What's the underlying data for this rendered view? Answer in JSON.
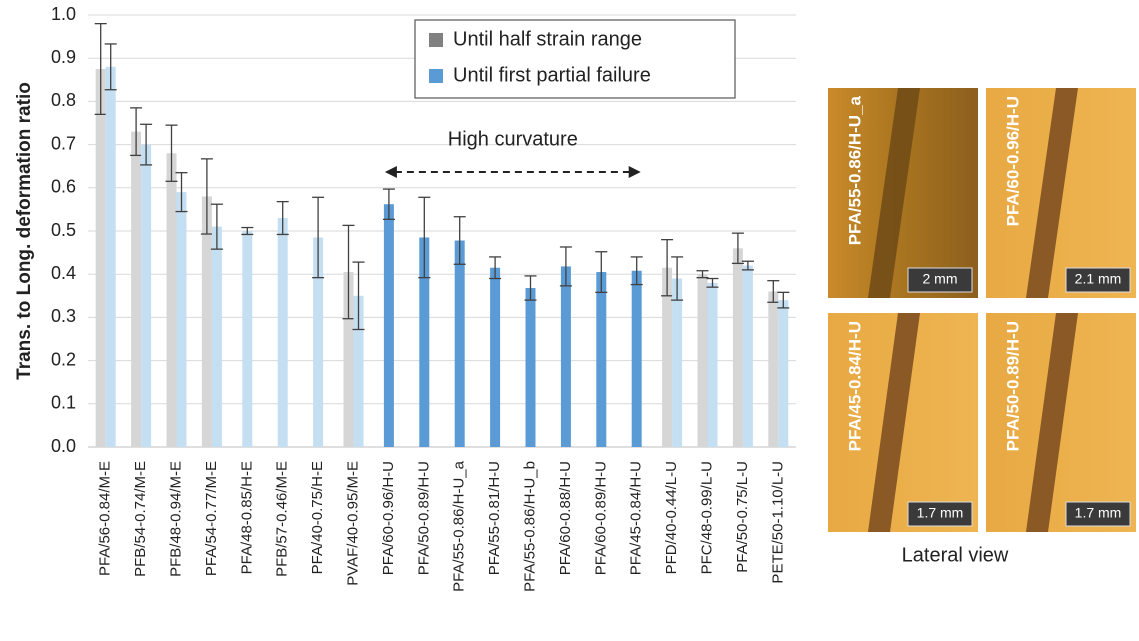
{
  "chart_data": {
    "type": "bar",
    "y_label": "Trans. to Long. deformation ratio",
    "categories": [
      "PFA/56-0.84/M-E",
      "PFB/54-0.74/M-E",
      "PFB/48-0.94/M-E",
      "PFA/54-0.77/M-E",
      "PFA/48-0.85/H-E",
      "PFB/57-0.46/M-E",
      "PFA/40-0.75/H-E",
      "PVAF/40-0.95/M-E",
      "PFA/60-0.96/H-U",
      "PFA/50-0.89/H-U",
      "PFA/55-0.86/H-U_a",
      "PFA/55-0.81/H-U",
      "PFA/55-0.86/H-U_b",
      "PFA/60-0.88/H-U",
      "PFA/60-0.89/H-U",
      "PFA/45-0.84/H-U",
      "PFD/40-0.44/L-U",
      "PFC/48-0.99/L-U",
      "PFA/50-0.75/L-U",
      "PETE/50-1.10/L-U"
    ],
    "series": [
      {
        "name": "Until half strain range",
        "color": "#808080",
        "bar_color": "#d6d6d6",
        "values": [
          0.875,
          0.73,
          0.68,
          0.58,
          null,
          null,
          null,
          0.405,
          null,
          null,
          null,
          null,
          null,
          null,
          null,
          null,
          0.415,
          0.4,
          0.46,
          0.36
        ],
        "errors": [
          0.105,
          0.055,
          0.065,
          0.087,
          null,
          null,
          null,
          0.108,
          null,
          null,
          null,
          null,
          null,
          null,
          null,
          null,
          0.065,
          0.008,
          0.035,
          0.025
        ]
      },
      {
        "name": "Until first partial failure",
        "color": "#5b9bd5",
        "bar_color": "#c4dff2",
        "highlight_color": "#5b9bd5",
        "values": [
          0.88,
          0.7,
          0.59,
          0.51,
          0.5,
          0.53,
          0.485,
          0.35,
          0.562,
          0.485,
          0.478,
          0.415,
          0.368,
          0.418,
          0.405,
          0.408,
          0.39,
          0.38,
          0.42,
          0.34
        ],
        "errors": [
          0.053,
          0.047,
          0.045,
          0.052,
          0.008,
          0.038,
          0.093,
          0.078,
          0.035,
          0.093,
          0.055,
          0.025,
          0.028,
          0.045,
          0.047,
          0.032,
          0.05,
          0.01,
          0.01,
          0.018
        ]
      }
    ],
    "ylim": [
      0,
      1.0
    ],
    "yticks": [
      {
        "value": 0,
        "label": "0.0"
      },
      0.1,
      0.2,
      0.3,
      0.4,
      0.5,
      0.6,
      0.7,
      0.8,
      0.9,
      {
        "value": 1.0,
        "label": "1.0"
      }
    ],
    "grid": true,
    "legend": "top-right",
    "annotation": {
      "text": "High curvature",
      "from": 8,
      "to": 15
    }
  },
  "images": [
    {
      "label": "PFA/55-0.86/H-U_a",
      "scale": "2 mm"
    },
    {
      "label": "PFA/60-0.96/H-U",
      "scale": "2.1 mm"
    },
    {
      "label": "PFA/45-0.84/H-U",
      "scale": "1.7 mm"
    },
    {
      "label": "PFA/50-0.89/H-U",
      "scale": "1.7 mm"
    }
  ],
  "caption": "Lateral view"
}
